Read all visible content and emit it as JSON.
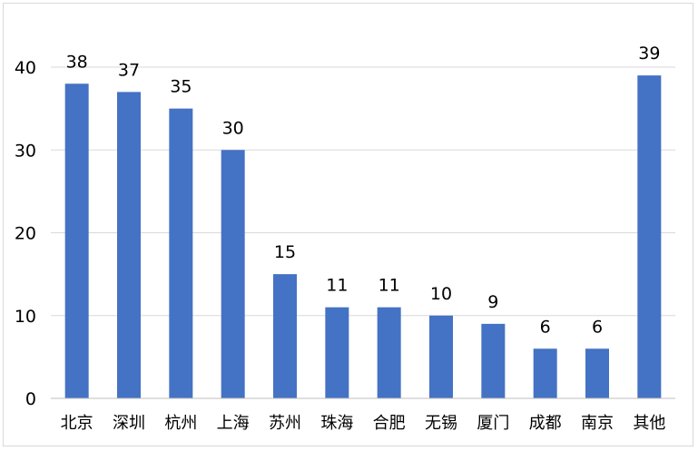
{
  "chart_data": {
    "type": "bar",
    "categories": [
      "北京",
      "深圳",
      "杭州",
      "上海",
      "苏州",
      "珠海",
      "合肥",
      "无锡",
      "厦门",
      "成都",
      "南京",
      "其他"
    ],
    "series": [
      {
        "values": [
          38,
          37,
          35,
          30,
          15,
          11,
          11,
          10,
          9,
          6,
          6,
          39
        ]
      }
    ],
    "yticks": [
      "0",
      "10",
      "20",
      "30",
      "40"
    ],
    "ylim": [
      0,
      40
    ],
    "grid": true,
    "legend": "none",
    "data_labels": true,
    "bar_color": "#4472c4",
    "grid_color": "#d9d9d9"
  }
}
